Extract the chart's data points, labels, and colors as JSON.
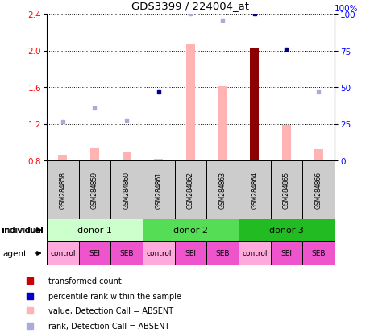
{
  "title": "GDS3399 / 224004_at",
  "samples": [
    "GSM284858",
    "GSM284859",
    "GSM284860",
    "GSM284861",
    "GSM284862",
    "GSM284863",
    "GSM284864",
    "GSM284865",
    "GSM284866"
  ],
  "bar_values": [
    0.86,
    0.93,
    0.9,
    0.82,
    2.07,
    1.61,
    2.03,
    1.19,
    0.92
  ],
  "bar_absent": [
    true,
    true,
    true,
    true,
    true,
    true,
    false,
    true,
    true
  ],
  "rank_values": [
    1.22,
    1.37,
    1.24,
    1.55,
    2.4,
    2.33,
    2.4,
    2.01,
    1.55
  ],
  "rank_absent": [
    true,
    true,
    true,
    false,
    true,
    true,
    false,
    false,
    true
  ],
  "ylim_left": [
    0.8,
    2.4
  ],
  "ylim_right": [
    0,
    100
  ],
  "yticks_left": [
    0.8,
    1.2,
    1.6,
    2.0,
    2.4
  ],
  "yticks_right": [
    0,
    25,
    50,
    75,
    100
  ],
  "color_bar_absent": "#FFB3B3",
  "color_bar_present": "#8B0000",
  "color_rank_absent": "#AAAADD",
  "color_rank_present": "#00008B",
  "donor_groups": [
    {
      "label": "donor 1",
      "start": 0,
      "end": 3,
      "color": "#CCFFCC"
    },
    {
      "label": "donor 2",
      "start": 3,
      "end": 6,
      "color": "#55DD55"
    },
    {
      "label": "donor 3",
      "start": 6,
      "end": 9,
      "color": "#22BB22"
    }
  ],
  "agent_labels": [
    "control",
    "SEI",
    "SEB",
    "control",
    "SEI",
    "SEB",
    "control",
    "SEI",
    "SEB"
  ],
  "agent_colors": [
    "#FFAADD",
    "#EE55CC",
    "#EE55CC",
    "#FFAADD",
    "#EE55CC",
    "#EE55CC",
    "#FFAADD",
    "#EE55CC",
    "#EE55CC"
  ],
  "individual_label": "individual",
  "agent_label": "agent",
  "legend_items": [
    {
      "label": "transformed count",
      "color": "#CC0000"
    },
    {
      "label": "percentile rank within the sample",
      "color": "#0000CC"
    },
    {
      "label": "value, Detection Call = ABSENT",
      "color": "#FFB3B3"
    },
    {
      "label": "rank, Detection Call = ABSENT",
      "color": "#AAAADD"
    }
  ],
  "fig_width": 4.6,
  "fig_height": 4.14,
  "dpi": 100
}
